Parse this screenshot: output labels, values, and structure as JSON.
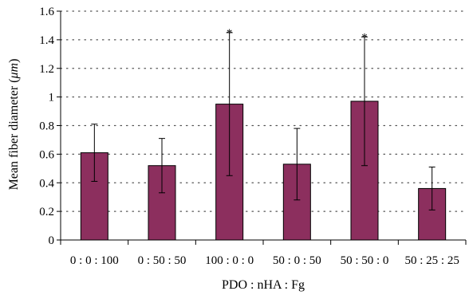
{
  "chart_data": {
    "type": "bar",
    "title": "",
    "xlabel": "PDO : nHA : Fg",
    "ylabel_prefix": "Mean fiber diameter (",
    "ylabel_unit": "μm",
    "ylabel_suffix": ")",
    "ylim": [
      0,
      1.6
    ],
    "yticks": [
      0,
      0.2,
      0.4,
      0.6,
      0.8,
      1,
      1.2,
      1.4,
      1.6
    ],
    "ytick_labels": [
      "0",
      "0.2",
      "0.4",
      "0.6",
      "0.8",
      "1",
      "1.2",
      "1.4",
      "1.6"
    ],
    "categories": [
      "0 : 0 : 100",
      "0 : 50 : 50",
      "100 : 0 : 0",
      "50 : 0 : 50",
      "50 : 50 : 0",
      "50 : 25 : 25"
    ],
    "values": [
      0.61,
      0.52,
      0.95,
      0.53,
      0.97,
      0.36
    ],
    "error": [
      0.2,
      0.19,
      0.5,
      0.25,
      0.45,
      0.15
    ],
    "annotations": [
      "",
      "",
      "*",
      "",
      "*",
      ""
    ],
    "grid": "horizontal dotted",
    "legend": "none",
    "colors": {
      "bar_fill": "#8c2f5e",
      "bar_stroke": "#000000",
      "error_bar": "#000000",
      "grid": "#555555",
      "axis": "#000000"
    }
  }
}
